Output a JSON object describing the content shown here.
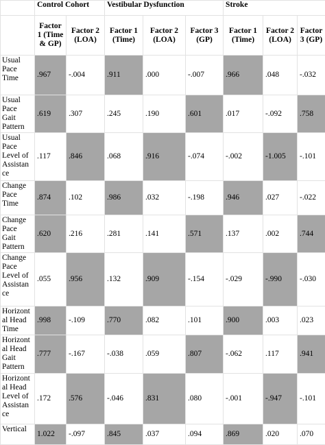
{
  "table": {
    "groups": [
      "Control Cohort",
      "Vestibular Dysfunction",
      "Stroke"
    ],
    "columns": [
      "Factor 1 (Time & GP)",
      "Factor 2 (LOA)",
      "Factor 1 (Time)",
      "Factor 2 (LOA)",
      "Factor 3 (GP)",
      "Factor 1 (Time)",
      "Factor 2 (LOA)",
      "Factor 3 (GP)"
    ],
    "rows": [
      {
        "label": "Usual Pace Time",
        "values": [
          ".967",
          "-.004",
          ".911",
          ".000",
          "-.007",
          ".966",
          ".048",
          "-.032"
        ],
        "highlighted": [
          0,
          2,
          5
        ]
      },
      {
        "label": "Usual Pace Gait Pattern",
        "values": [
          ".619",
          ".307",
          ".245",
          ".190",
          ".601",
          ".017",
          "-.092",
          ".758"
        ],
        "highlighted": [
          0,
          4,
          7
        ]
      },
      {
        "label": "Usual Pace Level of Assistance",
        "values": [
          ".117",
          ".846",
          ".068",
          ".916",
          "-.074",
          "-.002",
          "-1.005",
          "-.101"
        ],
        "highlighted": [
          1,
          3,
          6
        ]
      },
      {
        "label": "Change Pace Time",
        "values": [
          ".874",
          ".102",
          ".986",
          ".032",
          "-.198",
          ".946",
          ".027",
          "-.022"
        ],
        "highlighted": [
          0,
          2,
          5
        ]
      },
      {
        "label": "Change Pace Gait Pattern",
        "values": [
          ".620",
          ".216",
          ".281",
          ".141",
          ".571",
          ".137",
          ".002",
          ".744"
        ],
        "highlighted": [
          0,
          4,
          7
        ]
      },
      {
        "label": "Change Pace Level of Assistance",
        "values": [
          ".055",
          ".956",
          ".132",
          ".909",
          "-.154",
          "-.029",
          "-.990",
          "-.030"
        ],
        "highlighted": [
          1,
          3,
          6
        ]
      },
      {
        "label": "Horizontal Head Time",
        "values": [
          ".998",
          "-.109",
          ".770",
          ".082",
          ".101",
          ".900",
          ".003",
          ".023"
        ],
        "highlighted": [
          0,
          2,
          5
        ]
      },
      {
        "label": "Horizontal Head Gait Pattern",
        "values": [
          ".777",
          "-.167",
          "-.038",
          ".059",
          ".807",
          "-.062",
          ".117",
          ".941"
        ],
        "highlighted": [
          0,
          4,
          7
        ]
      },
      {
        "label": "Horizontal Head Level of Assistance",
        "values": [
          ".172",
          ".576",
          "-.046",
          ".831",
          ".080",
          "-.001",
          "-.947",
          "-.101"
        ],
        "highlighted": [
          1,
          3,
          6
        ]
      },
      {
        "label": "Vertical",
        "values": [
          "1.022",
          "-.097",
          ".845",
          ".037",
          ".094",
          ".869",
          ".020",
          ".070"
        ],
        "highlighted": [
          0,
          2,
          5
        ]
      }
    ]
  }
}
